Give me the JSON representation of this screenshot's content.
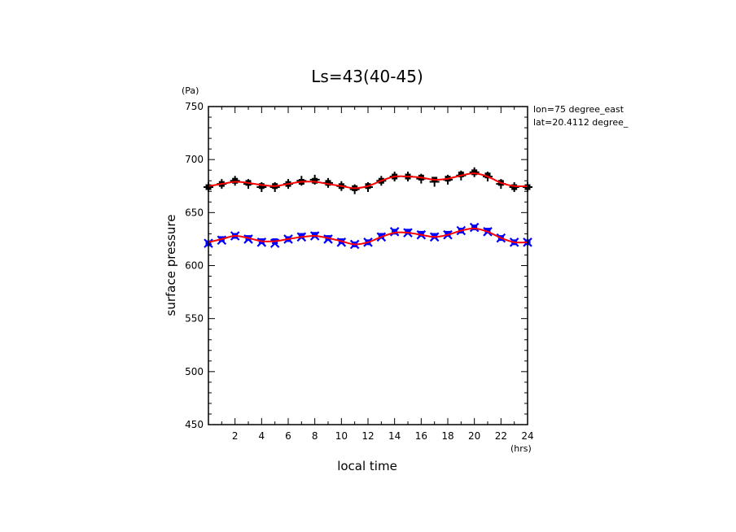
{
  "chart_data": {
    "type": "line",
    "title": "Ls=43(40-45)",
    "xlabel": "local time",
    "ylabel": "surface pressure",
    "x_unit": "(hrs)",
    "y_unit": "(Pa)",
    "annotations": [
      "lon=75 degree_east",
      "lat=20.4112 degree_"
    ],
    "xlim": [
      0,
      24
    ],
    "ylim": [
      450,
      750
    ],
    "xticks": [
      2,
      4,
      6,
      8,
      10,
      12,
      14,
      16,
      18,
      20,
      22,
      24
    ],
    "yticks": [
      450,
      500,
      550,
      600,
      650,
      700,
      750
    ],
    "grid": false,
    "series": [
      {
        "marker": "plus",
        "color": "#000000",
        "x": [
          0,
          1,
          2,
          3,
          4,
          5,
          6,
          7,
          8,
          9,
          10,
          11,
          12,
          13,
          14,
          15,
          16,
          17,
          18,
          19,
          20,
          21,
          22,
          23,
          24
        ],
        "values": [
          674,
          677,
          680,
          677,
          674,
          674,
          677,
          680,
          681,
          678,
          675,
          672,
          674,
          680,
          684,
          684,
          682,
          679,
          681,
          685,
          688,
          684,
          677,
          674,
          674
        ]
      },
      {
        "marker": "square",
        "color": "#000000",
        "x": [
          0,
          1,
          2,
          3,
          4,
          5,
          6,
          7,
          8,
          9,
          10,
          11,
          12,
          13,
          14,
          15,
          16,
          17,
          18,
          19,
          20,
          21,
          22,
          23,
          24
        ],
        "values": [
          674,
          677,
          680,
          678,
          675,
          675,
          677,
          679,
          680,
          678,
          675,
          673,
          675,
          680,
          684,
          684,
          683,
          681,
          682,
          686,
          688,
          685,
          678,
          674,
          674
        ]
      },
      {
        "marker": "x",
        "color": "#0000ff",
        "x": [
          0,
          1,
          2,
          3,
          4,
          5,
          6,
          7,
          8,
          9,
          10,
          11,
          12,
          13,
          14,
          15,
          16,
          17,
          18,
          19,
          20,
          21,
          22,
          23,
          24
        ],
        "values": [
          621,
          624,
          628,
          625,
          622,
          621,
          625,
          627,
          628,
          625,
          622,
          620,
          622,
          627,
          632,
          631,
          629,
          627,
          629,
          633,
          636,
          632,
          626,
          622,
          622
        ]
      },
      {
        "marker": "square",
        "color": "#0000ff",
        "x": [
          0,
          1,
          2,
          3,
          4,
          5,
          6,
          7,
          8,
          9,
          10,
          11,
          12,
          13,
          14,
          15,
          16,
          17,
          18,
          19,
          20,
          21,
          22,
          23,
          24
        ],
        "values": [
          621,
          625,
          628,
          626,
          623,
          623,
          625,
          628,
          629,
          626,
          623,
          620,
          622,
          628,
          632,
          632,
          630,
          628,
          630,
          633,
          636,
          633,
          626,
          622,
          622
        ]
      },
      {
        "marker": "none",
        "color": "#ff0000",
        "x": [
          0,
          1,
          2,
          3,
          4,
          5,
          6,
          7,
          8,
          9,
          10,
          11,
          12,
          13,
          14,
          15,
          16,
          17,
          18,
          19,
          20,
          21,
          22,
          23,
          24
        ],
        "values": [
          675,
          677,
          679,
          678,
          676,
          675,
          677,
          679,
          679,
          677,
          675,
          673,
          675,
          680,
          684,
          684,
          683,
          681,
          682,
          685,
          687,
          684,
          678,
          675,
          675
        ]
      },
      {
        "marker": "none",
        "color": "#ff0000",
        "x": [
          0,
          1,
          2,
          3,
          4,
          5,
          6,
          7,
          8,
          9,
          10,
          11,
          12,
          13,
          14,
          15,
          16,
          17,
          18,
          19,
          20,
          21,
          22,
          23,
          24
        ],
        "values": [
          622,
          625,
          628,
          626,
          623,
          623,
          625,
          627,
          628,
          626,
          623,
          620,
          622,
          627,
          631,
          631,
          629,
          627,
          629,
          633,
          635,
          632,
          626,
          622,
          622
        ]
      }
    ]
  }
}
